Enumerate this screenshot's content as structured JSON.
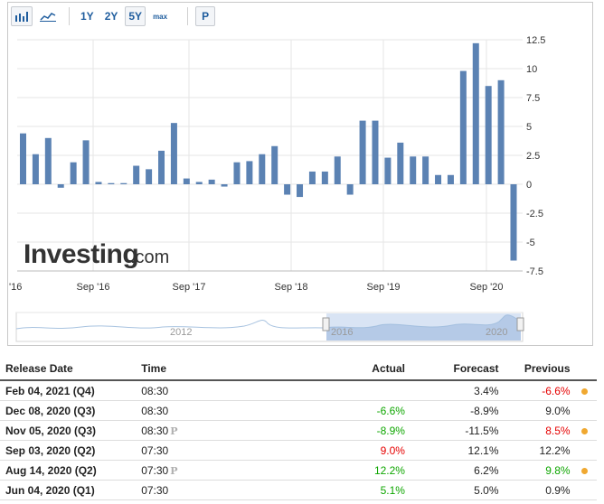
{
  "toolbar": {
    "bar_chart_icon": "bar-chart-icon",
    "line_chart_icon": "line-chart-icon",
    "ranges": [
      "1Y",
      "2Y",
      "5Y",
      "max"
    ],
    "active_range": "5Y",
    "p_label": "P"
  },
  "watermark": {
    "brand": "Investing",
    "suffix": ".com"
  },
  "navigator": {
    "labels": [
      "2012",
      "2016",
      "2020"
    ]
  },
  "chart_data": {
    "type": "bar",
    "color": "#5b82b3",
    "x_tick_labels": [
      "'16",
      "Sep '16",
      "Sep '17",
      "Sep '18",
      "Sep '19",
      "Sep '20"
    ],
    "y_tick_labels": [
      "12.5",
      "10",
      "7.5",
      "5",
      "2.5",
      "0",
      "-2.5",
      "-5",
      "-7.5"
    ],
    "ylim": [
      -7.5,
      12.5
    ],
    "grid": true,
    "values": [
      4.4,
      2.6,
      4.0,
      -0.3,
      1.9,
      3.8,
      0.2,
      0.1,
      0.1,
      1.6,
      1.3,
      2.9,
      5.3,
      0.5,
      0.2,
      0.4,
      -0.2,
      1.9,
      2.0,
      2.6,
      3.3,
      -0.9,
      -1.1,
      1.1,
      1.1,
      2.4,
      -0.9,
      5.5,
      5.5,
      2.3,
      3.6,
      2.4,
      2.4,
      0.8,
      0.8,
      9.8,
      12.2,
      8.5,
      9.0,
      -6.6
    ]
  },
  "table": {
    "headers": {
      "release_date": "Release Date",
      "time": "Time",
      "actual": "Actual",
      "forecast": "Forecast",
      "previous": "Previous"
    },
    "rows": [
      {
        "date": "Feb 04, 2021 (Q4)",
        "time": "08:30",
        "preliminary": "",
        "actual": "",
        "actual_color": "",
        "forecast": "3.4%",
        "previous": "-6.6%",
        "previous_color": "red",
        "dot": true
      },
      {
        "date": "Dec 08, 2020 (Q3)",
        "time": "08:30",
        "preliminary": "",
        "actual": "-6.6%",
        "actual_color": "green",
        "forecast": "-8.9%",
        "previous": "9.0%",
        "previous_color": "",
        "dot": false
      },
      {
        "date": "Nov 05, 2020 (Q3)",
        "time": "08:30",
        "preliminary": "P",
        "actual": "-8.9%",
        "actual_color": "green",
        "forecast": "-11.5%",
        "previous": "8.5%",
        "previous_color": "red",
        "dot": true
      },
      {
        "date": "Sep 03, 2020 (Q2)",
        "time": "07:30",
        "preliminary": "",
        "actual": "9.0%",
        "actual_color": "red",
        "forecast": "12.1%",
        "previous": "12.2%",
        "previous_color": "",
        "dot": false
      },
      {
        "date": "Aug 14, 2020 (Q2)",
        "time": "07:30",
        "preliminary": "P",
        "actual": "12.2%",
        "actual_color": "green",
        "forecast": "6.2%",
        "previous": "9.8%",
        "previous_color": "green",
        "dot": true
      },
      {
        "date": "Jun 04, 2020 (Q1)",
        "time": "07:30",
        "preliminary": "",
        "actual": "5.1%",
        "actual_color": "green",
        "forecast": "5.0%",
        "previous": "0.9%",
        "previous_color": "",
        "dot": false
      }
    ]
  }
}
